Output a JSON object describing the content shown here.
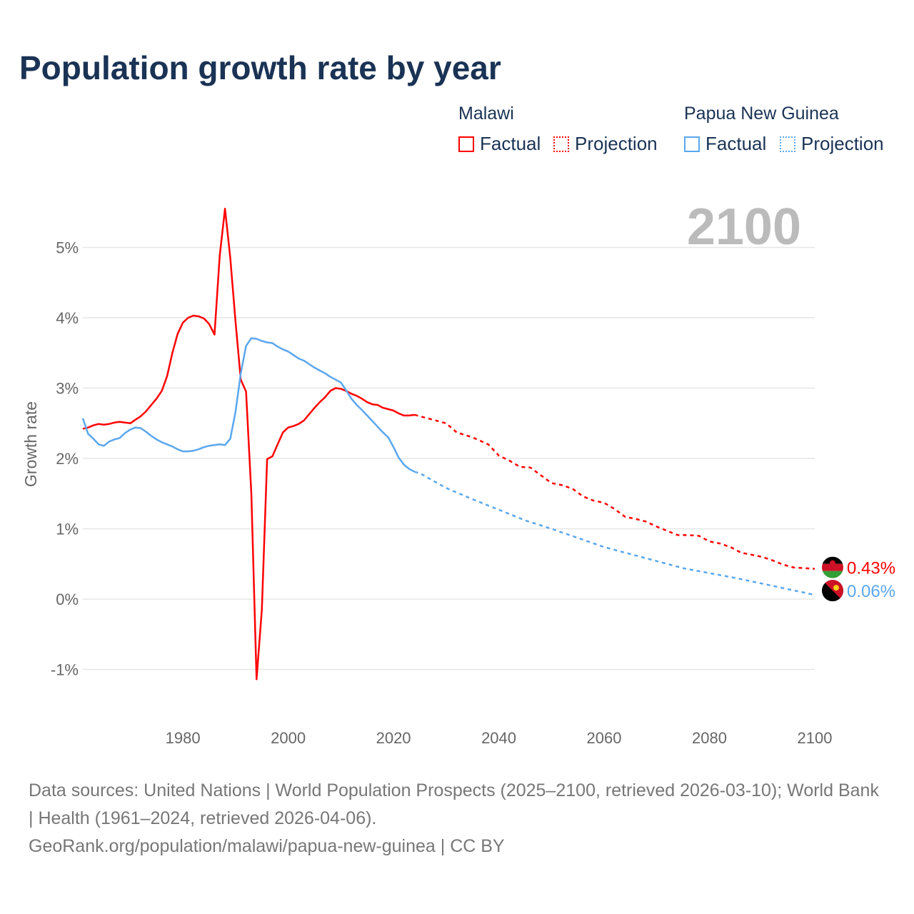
{
  "title": "Population growth rate by year",
  "legend": {
    "groups": [
      {
        "name": "Malawi",
        "factual": "Factual",
        "projection": "Projection",
        "color": "#ff0000"
      },
      {
        "name": "Papua New Guinea",
        "factual": "Factual",
        "projection": "Projection",
        "color": "#5aa7ee"
      }
    ]
  },
  "year_label": "2100",
  "footer": {
    "line1": "Data sources: United Nations | World Population Prospects (2025–2100, retrieved 2026-03-10); World Bank | Health (1961–2024, retrieved 2026-04-06).",
    "line2": "GeoRank.org/population/malawi/papua-new-guinea | CC BY"
  },
  "chart_data": {
    "type": "line",
    "title": "Population growth rate by year",
    "xlabel": "",
    "ylabel": "Growth rate",
    "xlim": [
      1961,
      2100
    ],
    "ylim": [
      -1.5,
      5.9
    ],
    "xticks": [
      1980,
      2000,
      2020,
      2040,
      2060,
      2080,
      2100
    ],
    "xtick_labels": [
      "1980",
      "2000",
      "2020",
      "2040",
      "2060",
      "2080",
      "2100"
    ],
    "yticks": [
      -1,
      0,
      1,
      2,
      3,
      4,
      5
    ],
    "ytick_labels": [
      "-1%",
      "0%",
      "1%",
      "2%",
      "3%",
      "4%",
      "5%"
    ],
    "grid": true,
    "series": [
      {
        "name": "Malawi Factual",
        "color": "#ff0000",
        "dashed": false,
        "x": [
          1961,
          1962,
          1963,
          1964,
          1965,
          1966,
          1967,
          1968,
          1969,
          1970,
          1971,
          1972,
          1973,
          1974,
          1975,
          1976,
          1977,
          1978,
          1979,
          1980,
          1981,
          1982,
          1983,
          1984,
          1985,
          1986,
          1987,
          1988,
          1989,
          1990,
          1991,
          1992,
          1993,
          1994,
          1995,
          1996,
          1997,
          1998,
          1999,
          2000,
          2001,
          2002,
          2003,
          2004,
          2005,
          2006,
          2007,
          2008,
          2009,
          2010,
          2011,
          2012,
          2013,
          2014,
          2015,
          2016,
          2017,
          2018,
          2019,
          2020,
          2021,
          2022,
          2023,
          2024
        ],
        "y": [
          2.42,
          2.44,
          2.47,
          2.49,
          2.48,
          2.49,
          2.51,
          2.52,
          2.51,
          2.5,
          2.55,
          2.6,
          2.67,
          2.76,
          2.85,
          2.96,
          3.17,
          3.5,
          3.77,
          3.93,
          4.0,
          4.03,
          4.02,
          3.99,
          3.91,
          3.76,
          4.88,
          5.55,
          4.85,
          3.95,
          3.12,
          2.95,
          1.5,
          -1.14,
          -0.15,
          1.99,
          2.03,
          2.2,
          2.37,
          2.44,
          2.46,
          2.49,
          2.54,
          2.63,
          2.72,
          2.8,
          2.87,
          2.96,
          3.0,
          2.99,
          2.96,
          2.92,
          2.89,
          2.85,
          2.8,
          2.77,
          2.76,
          2.72,
          2.7,
          2.68,
          2.64,
          2.61,
          2.61,
          2.62
        ]
      },
      {
        "name": "Malawi Projection",
        "color": "#ff0000",
        "dashed": true,
        "x": [
          2024,
          2025,
          2028,
          2030,
          2032,
          2035,
          2038,
          2040,
          2042,
          2044,
          2046,
          2048,
          2050,
          2052,
          2054,
          2056,
          2058,
          2060,
          2062,
          2064,
          2066,
          2068,
          2070,
          2072,
          2074,
          2076,
          2078,
          2080,
          2082,
          2084,
          2086,
          2088,
          2090,
          2092,
          2094,
          2096,
          2098,
          2100
        ],
        "y": [
          2.62,
          2.6,
          2.54,
          2.5,
          2.37,
          2.3,
          2.2,
          2.04,
          1.97,
          1.88,
          1.87,
          1.76,
          1.65,
          1.62,
          1.57,
          1.46,
          1.4,
          1.37,
          1.28,
          1.17,
          1.14,
          1.1,
          1.03,
          0.97,
          0.91,
          0.91,
          0.9,
          0.82,
          0.79,
          0.74,
          0.66,
          0.63,
          0.6,
          0.55,
          0.49,
          0.45,
          0.44,
          0.43
        ]
      },
      {
        "name": "Papua New Guinea Factual",
        "color": "#5aa7ee",
        "dashed": false,
        "x": [
          1961,
          1962,
          1963,
          1964,
          1965,
          1966,
          1967,
          1968,
          1969,
          1970,
          1971,
          1972,
          1973,
          1974,
          1975,
          1976,
          1977,
          1978,
          1979,
          1980,
          1981,
          1982,
          1983,
          1984,
          1985,
          1986,
          1987,
          1988,
          1989,
          1990,
          1991,
          1992,
          1993,
          1994,
          1995,
          1996,
          1997,
          1998,
          1999,
          2000,
          2001,
          2002,
          2003,
          2004,
          2005,
          2006,
          2007,
          2008,
          2009,
          2010,
          2011,
          2012,
          2013,
          2014,
          2015,
          2016,
          2017,
          2018,
          2019,
          2020,
          2021,
          2022,
          2023,
          2024
        ],
        "y": [
          2.57,
          2.35,
          2.28,
          2.2,
          2.18,
          2.24,
          2.27,
          2.29,
          2.36,
          2.41,
          2.44,
          2.43,
          2.38,
          2.32,
          2.27,
          2.23,
          2.2,
          2.17,
          2.13,
          2.1,
          2.1,
          2.11,
          2.13,
          2.16,
          2.18,
          2.19,
          2.2,
          2.19,
          2.28,
          2.66,
          3.21,
          3.6,
          3.71,
          3.7,
          3.67,
          3.65,
          3.64,
          3.59,
          3.55,
          3.52,
          3.47,
          3.42,
          3.39,
          3.34,
          3.29,
          3.25,
          3.21,
          3.16,
          3.12,
          3.08,
          2.97,
          2.85,
          2.76,
          2.69,
          2.61,
          2.53,
          2.45,
          2.37,
          2.3,
          2.16,
          2.01,
          1.91,
          1.85,
          1.81
        ]
      },
      {
        "name": "Papua New Guinea Projection",
        "color": "#5aa7ee",
        "dashed": true,
        "x": [
          2024,
          2025,
          2030,
          2035,
          2040,
          2045,
          2050,
          2055,
          2060,
          2065,
          2070,
          2075,
          2080,
          2085,
          2090,
          2095,
          2100
        ],
        "y": [
          1.81,
          1.79,
          1.58,
          1.42,
          1.27,
          1.12,
          1.0,
          0.87,
          0.74,
          0.64,
          0.54,
          0.44,
          0.37,
          0.3,
          0.22,
          0.14,
          0.06
        ]
      }
    ],
    "end_labels": [
      {
        "country": "Malawi",
        "text": "0.43%",
        "value": 0.43,
        "color": "#ff0000"
      },
      {
        "country": "Papua New Guinea",
        "text": "0.06%",
        "value": 0.06,
        "color": "#5aa7ee"
      }
    ]
  }
}
